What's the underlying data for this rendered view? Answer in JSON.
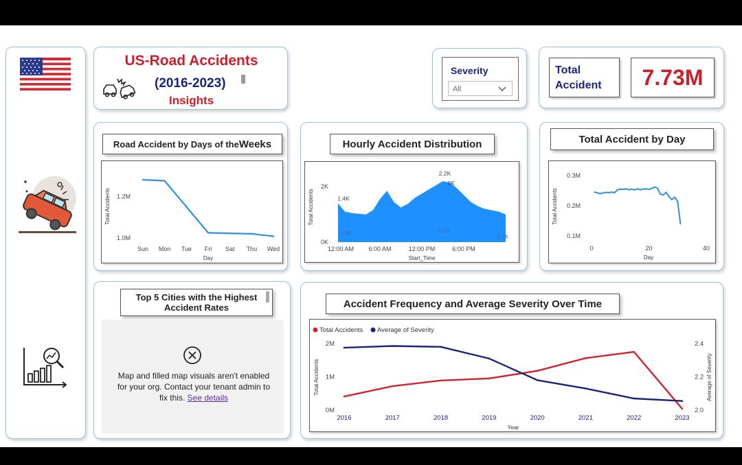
{
  "header": {
    "title": "US-Road Accidents",
    "years": "(2016-2023)",
    "subtitle": "Insights"
  },
  "filter": {
    "label": "Severity",
    "value": "All"
  },
  "kpi": {
    "label_line1": "Total",
    "label_line2": "Accident",
    "value": "7.73M"
  },
  "colors": {
    "title_red": "#cc1f2a",
    "navy": "#1a237e",
    "blue": "#2f8fe0",
    "area_blue": "#1e90ff",
    "red_line": "#d42030"
  },
  "days_of_week": {
    "title_part1": "Road Accident by Days of the ",
    "title_part2": "Weeks",
    "ylabel": "Total Accidents",
    "xlabel": "Day",
    "yticks": [
      "1.2M",
      "1.0M"
    ],
    "chart_data": {
      "type": "line",
      "categories": [
        "Sun",
        "Mon",
        "Tue",
        "Fri",
        "Sat",
        "Thu",
        "Wed"
      ],
      "values": [
        1280000,
        1275000,
        1150000,
        1025000,
        1022000,
        1020000,
        1008000
      ],
      "ylim": [
        980000,
        1320000
      ]
    }
  },
  "hourly": {
    "title": "Hourly Accident Distribution",
    "ylabel": "Total Accidents",
    "xlabel": "Start_Time",
    "yticks": [
      "2K",
      "0K"
    ],
    "xticks": [
      "12:00 AM",
      "6:00 AM",
      "12:00 PM",
      "6:00 PM"
    ],
    "annotations": [
      "2.2K",
      "1.4K",
      "2K",
      "0.0K",
      "0.1K",
      "0.0K"
    ],
    "chart_data": {
      "type": "area",
      "x": [
        0,
        1,
        2,
        3,
        4,
        5,
        6,
        7,
        8,
        9,
        10,
        11,
        12,
        13,
        14,
        15,
        16,
        17,
        18,
        19,
        20,
        21,
        22,
        23,
        24
      ],
      "values": [
        1400,
        1100,
        1050,
        1020,
        1000,
        1150,
        1550,
        1850,
        1450,
        1250,
        1380,
        1600,
        1750,
        1900,
        2050,
        2200,
        2150,
        1950,
        1700,
        1450,
        1300,
        1200,
        1150,
        1100,
        1000
      ],
      "ylim": [
        0,
        2600
      ]
    }
  },
  "by_day": {
    "title": "Total Accident by Day",
    "ylabel": "Total Accidents",
    "xlabel": "Day",
    "yticks": [
      "0.3M",
      "0.2M",
      "0.1M"
    ],
    "xticks": [
      "0",
      "20",
      "40"
    ],
    "chart_data": {
      "type": "line",
      "x": [
        1,
        2,
        3,
        4,
        5,
        6,
        7,
        8,
        9,
        10,
        11,
        12,
        13,
        14,
        15,
        16,
        17,
        18,
        19,
        20,
        21,
        22,
        23,
        24,
        25,
        26,
        27,
        28,
        29,
        30,
        31
      ],
      "values": [
        245000,
        243000,
        240000,
        242000,
        244000,
        243000,
        245000,
        243000,
        252000,
        255000,
        254000,
        256000,
        253000,
        255000,
        252000,
        256000,
        253000,
        255000,
        256000,
        254000,
        257000,
        262000,
        258000,
        238000,
        236000,
        244000,
        230000,
        220000,
        228000,
        215000,
        140000
      ],
      "xlim": [
        0,
        40
      ],
      "ylim": [
        80000,
        320000
      ]
    }
  },
  "cities": {
    "title_line1": "Top 5 Cities with the Highest",
    "title_line2": "Accident Rates",
    "message": "Map and filled map visuals aren't enabled for your org. Contact your tenant admin to fix this.",
    "link": "See details"
  },
  "frequency": {
    "title": "Accident Frequency and Average Severity Over Time",
    "legend": [
      "Total Accidents",
      "Average of Severity"
    ],
    "ylabel_left": "Total Accidents",
    "ylabel_right": "Average of Severity",
    "xlabel": "Year",
    "yticks_left": [
      "2M",
      "1M",
      "0M"
    ],
    "yticks_right": [
      "2.4",
      "2.2",
      "2.0"
    ],
    "chart_data": {
      "type": "line",
      "categories": [
        "2016",
        "2017",
        "2018",
        "2019",
        "2020",
        "2021",
        "2022",
        "2023"
      ],
      "series": [
        {
          "name": "Total Accidents",
          "axis": "left",
          "values": [
            410000,
            720000,
            890000,
            950000,
            1180000,
            1560000,
            1750000,
            40000
          ]
        },
        {
          "name": "Average of Severity",
          "axis": "right",
          "values": [
            2.375,
            2.385,
            2.38,
            2.31,
            2.18,
            2.13,
            2.07,
            2.055
          ]
        }
      ],
      "ylim_left": [
        0,
        2100000
      ],
      "ylim_right": [
        2.0,
        2.42
      ]
    }
  }
}
